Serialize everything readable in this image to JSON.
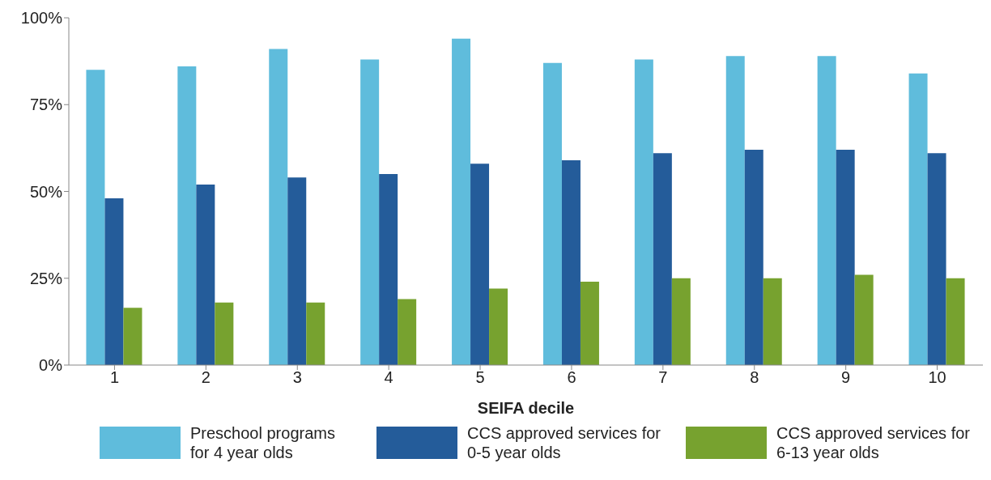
{
  "chart_data": {
    "type": "bar",
    "xlabel": "SEIFA decile",
    "categories": [
      "1",
      "2",
      "3",
      "4",
      "5",
      "6",
      "7",
      "8",
      "9",
      "10"
    ],
    "series": [
      {
        "name": "Preschool programs for 4 year olds",
        "color": "#5fbcdc",
        "values": [
          85,
          86,
          91,
          88,
          94,
          87,
          88,
          89,
          89,
          84
        ]
      },
      {
        "name": "CCS approved services for 0-5 year olds",
        "color": "#245c9a",
        "values": [
          48,
          52,
          54,
          55,
          58,
          59,
          61,
          62,
          62,
          61
        ]
      },
      {
        "name": "CCS approved services for 6-13 year olds",
        "color": "#77a22f",
        "values": [
          16.5,
          18,
          18,
          19,
          22,
          24,
          25,
          25,
          26,
          25
        ]
      }
    ],
    "ylim": [
      0,
      100
    ],
    "yticks": [
      {
        "value": 0,
        "label": "0%"
      },
      {
        "value": 25,
        "label": "25%"
      },
      {
        "value": 50,
        "label": "50%"
      },
      {
        "value": 75,
        "label": "75%"
      },
      {
        "value": 100,
        "label": "100%"
      }
    ],
    "grid": false,
    "legend": "bottom"
  }
}
